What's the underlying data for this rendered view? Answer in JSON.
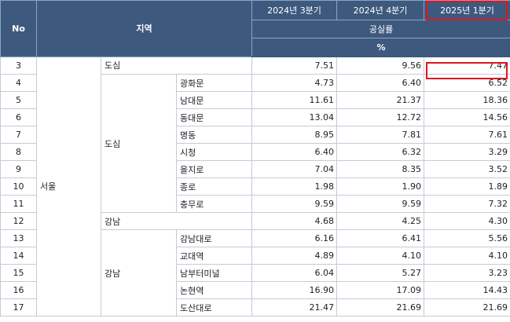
{
  "header": {
    "no": "No",
    "region": "지역",
    "periods": [
      "2024년 3분기",
      "2024년 4분기",
      "2025년 1분기"
    ],
    "metric": "공실률",
    "unit": "%"
  },
  "city": "서울",
  "groups": {
    "cbd": "도심",
    "gangnam": "강남"
  },
  "rows": [
    {
      "no": "3",
      "name": "도심",
      "values": [
        "7.51",
        "9.56",
        "7.47"
      ]
    },
    {
      "no": "4",
      "name": "광화문",
      "values": [
        "4.73",
        "6.40",
        "6.52"
      ]
    },
    {
      "no": "5",
      "name": "남대문",
      "values": [
        "11.61",
        "21.37",
        "18.36"
      ]
    },
    {
      "no": "6",
      "name": "동대문",
      "values": [
        "13.04",
        "12.72",
        "14.56"
      ]
    },
    {
      "no": "7",
      "name": "명동",
      "values": [
        "8.95",
        "7.81",
        "7.61"
      ]
    },
    {
      "no": "8",
      "name": "시청",
      "values": [
        "6.40",
        "6.32",
        "3.29"
      ]
    },
    {
      "no": "9",
      "name": "을지로",
      "values": [
        "7.04",
        "8.35",
        "3.52"
      ]
    },
    {
      "no": "10",
      "name": "종로",
      "values": [
        "1.98",
        "1.90",
        "1.89"
      ]
    },
    {
      "no": "11",
      "name": "충무로",
      "values": [
        "9.59",
        "9.59",
        "7.32"
      ]
    },
    {
      "no": "12",
      "name": "강남",
      "values": [
        "4.68",
        "4.25",
        "4.30"
      ]
    },
    {
      "no": "13",
      "name": "강남대로",
      "values": [
        "6.16",
        "6.41",
        "5.56"
      ]
    },
    {
      "no": "14",
      "name": "교대역",
      "values": [
        "4.89",
        "4.10",
        "4.10"
      ]
    },
    {
      "no": "15",
      "name": "남부터미널",
      "values": [
        "6.04",
        "5.27",
        "3.23"
      ]
    },
    {
      "no": "16",
      "name": "논현역",
      "values": [
        "16.90",
        "17.09",
        "14.43"
      ]
    },
    {
      "no": "17",
      "name": "도산대로",
      "values": [
        "21.47",
        "21.69",
        "21.69"
      ]
    }
  ]
}
